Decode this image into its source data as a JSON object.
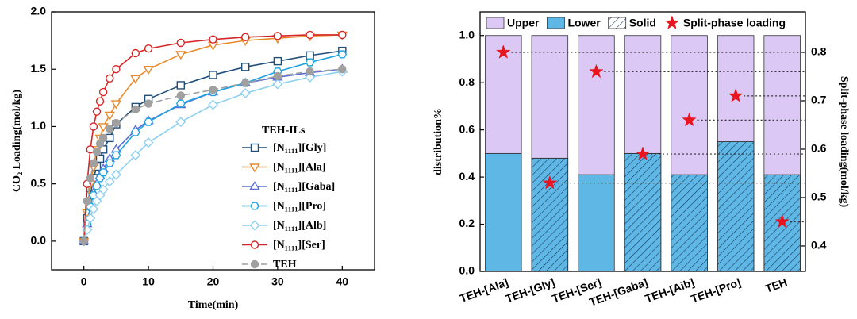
{
  "chart_data": [
    {
      "type": "line",
      "xlabel": "Time(min)",
      "ylabel": "CO₂ Loading(mol/kg)",
      "legend_title": "TEH-ILs",
      "x": [
        0,
        0.5,
        1,
        1.5,
        2,
        2.5,
        3,
        4,
        5,
        8,
        10,
        15,
        20,
        25,
        30,
        35,
        40
      ],
      "xlim": [
        -5,
        45
      ],
      "xticks": [
        0,
        10,
        20,
        30,
        40
      ],
      "ylim": [
        -0.25,
        2.0
      ],
      "yticks": [
        {
          "value": 0,
          "label": "0.0"
        },
        0.5,
        {
          "value": 1,
          "label": "1.0"
        },
        1.5,
        {
          "value": 2,
          "label": "2.0"
        }
      ],
      "series": [
        {
          "name": "[N₁₁₁₁][Gly]",
          "color": "#1f4e79",
          "marker": "square",
          "values": [
            0,
            0.2,
            0.4,
            0.55,
            0.65,
            0.72,
            0.8,
            0.9,
            1.02,
            1.17,
            1.24,
            1.36,
            1.45,
            1.52,
            1.57,
            1.62,
            1.66
          ]
        },
        {
          "name": "[N₁₁₁₁][Ala]",
          "color": "#e8892a",
          "marker": "triangle-down",
          "values": [
            0,
            0.25,
            0.5,
            0.65,
            0.8,
            0.9,
            1.0,
            1.1,
            1.2,
            1.42,
            1.5,
            1.63,
            1.71,
            1.75,
            1.77,
            1.79,
            1.8
          ]
        },
        {
          "name": "[N₁₁₁₁][Gaba]",
          "color": "#5b6fd6",
          "marker": "triangle-up",
          "values": [
            0,
            0.15,
            0.3,
            0.42,
            0.5,
            0.57,
            0.63,
            0.72,
            0.8,
            0.97,
            1.05,
            1.19,
            1.3,
            1.38,
            1.43,
            1.47,
            1.5
          ]
        },
        {
          "name": "[N₁₁₁₁][Pro]",
          "color": "#1fa3e0",
          "marker": "hexagon",
          "values": [
            0,
            0.15,
            0.3,
            0.4,
            0.48,
            0.55,
            0.6,
            0.68,
            0.75,
            0.95,
            1.04,
            1.2,
            1.3,
            1.38,
            1.48,
            1.56,
            1.63
          ]
        },
        {
          "name": "[N₁₁₁₁][Alb]",
          "color": "#8fd0f0",
          "marker": "diamond",
          "values": [
            0,
            0.1,
            0.2,
            0.28,
            0.35,
            0.4,
            0.45,
            0.52,
            0.58,
            0.75,
            0.86,
            1.04,
            1.19,
            1.29,
            1.37,
            1.43,
            1.48
          ]
        },
        {
          "name": "[N₁₁₁₁][Ser]",
          "color": "#d62728",
          "marker": "circle",
          "values": [
            0,
            0.5,
            0.8,
            1.0,
            1.13,
            1.22,
            1.3,
            1.42,
            1.5,
            1.64,
            1.68,
            1.73,
            1.76,
            1.78,
            1.79,
            1.8,
            1.8
          ]
        },
        {
          "name": "TEH",
          "color": "#a0a0a0",
          "marker": "filled-circle",
          "dashed": true,
          "values": [
            0,
            0.35,
            0.55,
            0.68,
            0.78,
            0.85,
            0.9,
            0.98,
            1.03,
            1.15,
            1.2,
            1.27,
            1.32,
            1.38,
            1.44,
            1.48,
            1.5
          ]
        }
      ]
    },
    {
      "type": "stacked-bar",
      "ylabel": "distribution%",
      "y2label": "Split-phase loading(mol/kg)",
      "categories": [
        "TEH-[Ala]",
        "TEH-[Gly]",
        "TEH-[Ser]",
        "TEH-[Gaba]",
        "TEH-[Aib]",
        "TEH-[Pro]",
        "TEH"
      ],
      "ylim": [
        0,
        1.1
      ],
      "yticks": [
        {
          "value": 0,
          "label": "0.0"
        },
        0.2,
        0.4,
        0.6,
        0.8,
        {
          "value": 1,
          "label": "1.0"
        }
      ],
      "y2lim": [
        0.3475,
        0.8836
      ],
      "y2ticks": [
        0.4,
        0.5,
        0.6,
        0.7,
        0.8
      ],
      "hatch_name": "Solid",
      "hatched": [
        false,
        true,
        false,
        true,
        true,
        true,
        true
      ],
      "series": [
        {
          "name": "Upper",
          "color": "#dcc8f5",
          "values": [
            0.5,
            0.52,
            0.59,
            0.5,
            0.59,
            0.45,
            0.59
          ]
        },
        {
          "name": "Lower",
          "color": "#5fb7e5",
          "values": [
            0.5,
            0.48,
            0.41,
            0.5,
            0.41,
            0.55,
            0.41
          ]
        },
        {
          "name": "Split-phase loading",
          "color": "#e8141e",
          "axis": "y2",
          "marker": "star",
          "values": [
            0.8,
            0.53,
            0.76,
            0.59,
            0.66,
            0.71,
            0.45
          ]
        }
      ]
    }
  ]
}
